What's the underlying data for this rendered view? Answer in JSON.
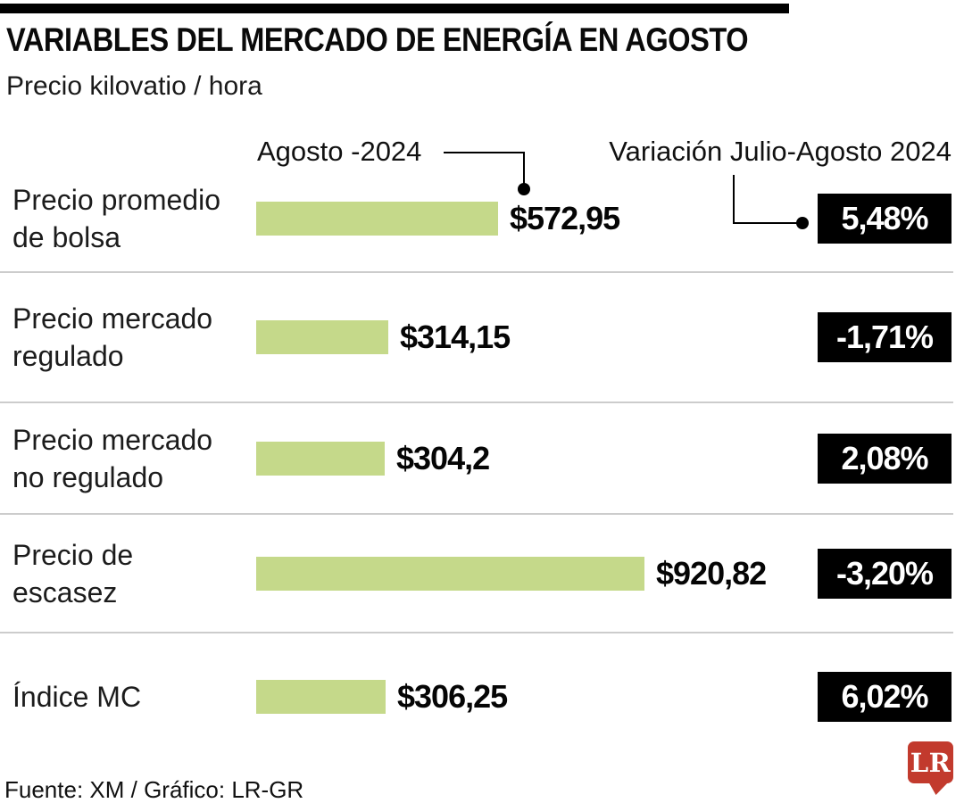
{
  "header": {
    "title": "VARIABLES DEL MERCADO DE ENERGÍA EN AGOSTO",
    "subtitle": "Precio kilovatio / hora"
  },
  "chart_data": {
    "type": "bar",
    "orientation": "horizontal",
    "title": "VARIABLES DEL MERCADO DE ENERGÍA EN AGOSTO",
    "subtitle": "Precio kilovatio / hora",
    "xlim": [
      0,
      920.82
    ],
    "grid": false,
    "bar_color": "#c5d98a",
    "badge_bg": "#000000",
    "badge_text_color": "#ffffff",
    "headers": {
      "value_col": "Agosto -2024",
      "variation_col": "Variación Julio-Agosto 2024"
    },
    "categories": [
      "Precio promedio de bolsa",
      "Precio mercado regulado",
      "Precio mercado no regulado",
      "Precio de escasez",
      "Índice MC"
    ],
    "series": [
      {
        "name": "Agosto -2024",
        "values": [
          572.95,
          314.15,
          304.2,
          920.82,
          306.25
        ]
      },
      {
        "name": "Variación Julio-Agosto 2024",
        "values": [
          5.48,
          -1.71,
          2.08,
          -3.2,
          6.02
        ]
      }
    ],
    "rows": [
      {
        "label": "Precio promedio\nde bolsa",
        "value": 572.95,
        "value_label": "$572,95",
        "variation": 5.48,
        "variation_label": "5,48%"
      },
      {
        "label": "Precio mercado\nregulado",
        "value": 314.15,
        "value_label": "$314,15",
        "variation": -1.71,
        "variation_label": "-1,71%"
      },
      {
        "label": "Precio mercado\nno regulado",
        "value": 304.2,
        "value_label": "$304,2",
        "variation": 2.08,
        "variation_label": "2,08%"
      },
      {
        "label": "Precio de\nescasez",
        "value": 920.82,
        "value_label": "$920,82",
        "variation": -3.2,
        "variation_label": "-3,20%"
      },
      {
        "label": "Índice MC",
        "value": 306.25,
        "value_label": "$306,25",
        "variation": 6.02,
        "variation_label": "6,02%"
      }
    ]
  },
  "footer": {
    "source": "Fuente: XM / Gráfico: LR-GR"
  },
  "branding": {
    "logo_text": "LR",
    "logo_bg": "#c23a2d"
  }
}
